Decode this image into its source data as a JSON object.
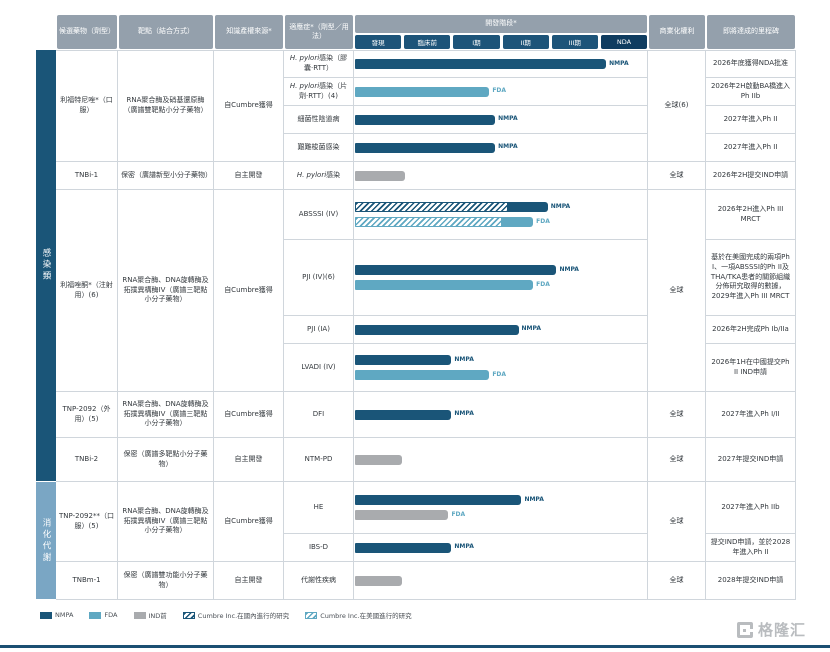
{
  "header": {
    "drug": "候選藥物（劑型）",
    "target": "靶點（結合方式）",
    "ip": "知識產權來源*",
    "indication": "適應症*（劑型／用法）",
    "stage": "開發階段*",
    "rights": "商業化權利",
    "milestone": "即將達成的里程碑",
    "stages": [
      "發現",
      "臨床前",
      "I期",
      "II期",
      "III期",
      "NDA"
    ]
  },
  "categories": [
    {
      "label": "感染類"
    },
    {
      "label": "消化代謝"
    }
  ],
  "groups": [
    {
      "drug": "利福特尼唑*（口服）",
      "target": "RNA聚合酶及硝基還原酶（廣譜雙靶點小分子藥物）",
      "ip": "自Cumbre獲得",
      "rights": "全球(6)",
      "rows": [
        {
          "indication_i": "H. pylori",
          "indication": "感染（膠囊·RTT）",
          "milestone": "2026年底獲得NDA批准",
          "bars": [
            {
              "track": "NMPA",
              "label": "NMPA",
              "style": "width:86%"
            }
          ]
        },
        {
          "indication_i": "H. pylori",
          "indication": "感染（片劑·RTT）(4)",
          "milestone": "2026年2H啟動BA橋進入Ph IIb",
          "bars": [
            {
              "track": "FDA",
              "label": "FDA",
              "style": "width:46%"
            }
          ]
        },
        {
          "indication": "細菌性陰道病",
          "milestone": "2027年進入Ph II",
          "bars": [
            {
              "track": "NMPA",
              "label": "NMPA",
              "style": "width:48%"
            }
          ]
        },
        {
          "indication": "艱難梭菌感染",
          "milestone": "2027年進入Ph II",
          "bars": [
            {
              "track": "NMPA",
              "label": "NMPA",
              "style": "width:48%"
            }
          ]
        }
      ]
    },
    {
      "drug": "TNBi-1",
      "target": "保密（廣譜新型小分子藥物）",
      "ip": "自主開發",
      "rights": "全球",
      "rows": [
        {
          "indication_i": "H. pylori",
          "indication": "感染",
          "milestone": "2026年2H提交IND申請",
          "bars": [
            {
              "track": "IND前",
              "label": "",
              "style": "width:17%"
            }
          ]
        }
      ]
    },
    {
      "drug": "利福唑酮*（注射用）(6)",
      "target": "RNA聚合酶、DNA旋轉酶及拓撲異構酶IV（廣譜三靶點小分子藥物）",
      "ip": "自Cumbre獲得",
      "rights": "全球",
      "rows": [
        {
          "indication": "ABSSSI (IV)",
          "milestone": "2026年2H進入Ph III MRCT",
          "bars": [
            {
              "track": "NMPA",
              "label": "NMPA",
              "hatch_style": "width:52%",
              "solid_style": "width:14%"
            },
            {
              "track": "FDA",
              "label": "FDA",
              "hatch_style": "width:50%",
              "solid_style": "width:11%"
            }
          ]
        },
        {
          "indication": "PJI (IV)(6)",
          "milestone": "基於在美國完成的兩項Ph I、一項ABSSSI的Ph II及THA/TKA患者的關節組織分佈研究取得的數據，2029年進入Ph III MRCT",
          "bars": [
            {
              "track": "NMPA",
              "label": "NMPA",
              "style": "width:69%"
            },
            {
              "track": "FDA",
              "label": "FDA",
              "style": "width:61%"
            }
          ]
        },
        {
          "indication": "PJI (IA)",
          "milestone": "2026年2H完成Ph Ib/IIa",
          "bars": [
            {
              "track": "NMPA",
              "label": "NMPA",
              "style": "width:56%"
            }
          ]
        },
        {
          "indication": "LVADI (IV)",
          "milestone": "2026年1H在中國提交Ph II IND申請",
          "bars": [
            {
              "track": "NMPA",
              "label": "NMPA",
              "style": "width:33%"
            },
            {
              "track": "FDA",
              "label": "FDA",
              "style": "width:46%"
            }
          ]
        }
      ]
    },
    {
      "drug": "TNP-2092（外用）(5)",
      "target": "RNA聚合酶、DNA旋轉酶及拓撲異構酶IV（廣譜三靶點小分子藥物）",
      "ip": "自Cumbre獲得",
      "rights": "全球",
      "rows": [
        {
          "indication": "DFI",
          "milestone": "2027年進入Ph I/II",
          "bars": [
            {
              "track": "NMPA",
              "label": "NMPA",
              "style": "width:33%"
            }
          ]
        }
      ]
    },
    {
      "drug": "TNBi-2",
      "target": "保密（廣譜多靶點小分子藥物）",
      "ip": "自主開發",
      "rights": "全球",
      "rows": [
        {
          "indication": "NTM-PD",
          "milestone": "2027年提交IND申請",
          "bars": [
            {
              "track": "IND前",
              "label": "",
              "style": "width:16%"
            }
          ]
        }
      ]
    },
    {
      "drug": "TNP-2092**（口服）(5)",
      "target": "RNA聚合酶、DNA旋轉酶及拓撲異構酶IV（廣譜三靶點小分子藥物）",
      "ip": "自Cumbre獲得",
      "rights": "全球",
      "rows": [
        {
          "indication": "HE",
          "milestone": "2027年進入Ph IIb",
          "bars": [
            {
              "track": "NMPA",
              "label": "NMPA",
              "style": "width:57%"
            },
            {
              "track": "IND前",
              "label": "FDA",
              "style": "width:32%"
            }
          ]
        },
        {
          "indication": "IBS-D",
          "milestone": "提交IND申請，並於2028年進入Ph II",
          "bars": [
            {
              "track": "NMPA",
              "label": "NMPA",
              "style": "width:33%"
            }
          ]
        }
      ]
    },
    {
      "drug": "TNBm-1",
      "target": "保密（廣譜雙功能小分子藥物）",
      "ip": "自主開發",
      "rights": "全球",
      "rows": [
        {
          "indication": "代謝性疾病",
          "milestone": "2028年提交IND申請",
          "bars": [
            {
              "track": "IND前",
              "label": "",
              "style": "width:16%"
            }
          ]
        }
      ]
    }
  ],
  "legend": [
    {
      "label": "NMPA"
    },
    {
      "label": "FDA"
    },
    {
      "label": "IND前"
    },
    {
      "label": "Cumbre Inc.在國內進行的研究"
    },
    {
      "label": "Cumbre Inc.在美國進行的研究"
    }
  ],
  "watermark": {
    "brand": "格隆汇"
  },
  "colors": {
    "navy": "#1a5578",
    "teal": "#5fa8c2",
    "gray": "#a9abae",
    "chip_navy": "#1d5479",
    "nda_chip": "#0f3c60",
    "header_gray": "#94a0ac",
    "category_infection": "#1a5578",
    "category_gi": "#7aa6c4"
  },
  "chart_data": {
    "type": "bar",
    "orientation": "horizontal",
    "stage_axis": [
      "發現",
      "臨床前",
      "I期",
      "II期",
      "III期",
      "NDA"
    ],
    "series": [
      {
        "drug": "利福特尼唑（口服）",
        "indication": "H. pylori感染（膠囊·RTT）",
        "track": "NMPA",
        "stage_reached": "NDA"
      },
      {
        "drug": "利福特尼唑（口服）",
        "indication": "H. pylori感染（片劑·RTT）",
        "track": "FDA",
        "stage_reached": "I期"
      },
      {
        "drug": "利福特尼唑（口服）",
        "indication": "細菌性陰道病",
        "track": "NMPA",
        "stage_reached": "I期"
      },
      {
        "drug": "利福特尼唑（口服）",
        "indication": "艱難梭菌感染",
        "track": "NMPA",
        "stage_reached": "I期"
      },
      {
        "drug": "TNBi-1",
        "indication": "H. pylori感染",
        "track": "IND前",
        "stage_reached": "發現"
      },
      {
        "drug": "利福唑酮（注射用）",
        "indication": "ABSSSI (IV)",
        "track": "NMPA",
        "stage_reached": "III期"
      },
      {
        "drug": "利福唑酮（注射用）",
        "indication": "ABSSSI (IV)",
        "track": "FDA",
        "stage_reached": "II期"
      },
      {
        "drug": "利福唑酮（注射用）",
        "indication": "PJI (IV)",
        "track": "NMPA",
        "stage_reached": "III期"
      },
      {
        "drug": "利福唑酮（注射用）",
        "indication": "PJI (IV)",
        "track": "FDA",
        "stage_reached": "II期"
      },
      {
        "drug": "利福唑酮（注射用）",
        "indication": "PJI (IA)",
        "track": "NMPA",
        "stage_reached": "II期"
      },
      {
        "drug": "利福唑酮（注射用）",
        "indication": "LVADI (IV)",
        "track": "NMPA",
        "stage_reached": "I期"
      },
      {
        "drug": "利福唑酮（注射用）",
        "indication": "LVADI (IV)",
        "track": "FDA",
        "stage_reached": "I期"
      },
      {
        "drug": "TNP-2092（外用）",
        "indication": "DFI",
        "track": "NMPA",
        "stage_reached": "I期"
      },
      {
        "drug": "TNBi-2",
        "indication": "NTM-PD",
        "track": "IND前",
        "stage_reached": "發現"
      },
      {
        "drug": "TNP-2092（口服）",
        "indication": "HE",
        "track": "NMPA",
        "stage_reached": "II期"
      },
      {
        "drug": "TNP-2092（口服）",
        "indication": "HE",
        "track": "IND前",
        "stage_reached": "臨床前"
      },
      {
        "drug": "TNP-2092（口服）",
        "indication": "IBS-D",
        "track": "NMPA",
        "stage_reached": "I期"
      },
      {
        "drug": "TNBm-1",
        "indication": "代謝性疾病",
        "track": "IND前",
        "stage_reached": "發現"
      }
    ]
  }
}
